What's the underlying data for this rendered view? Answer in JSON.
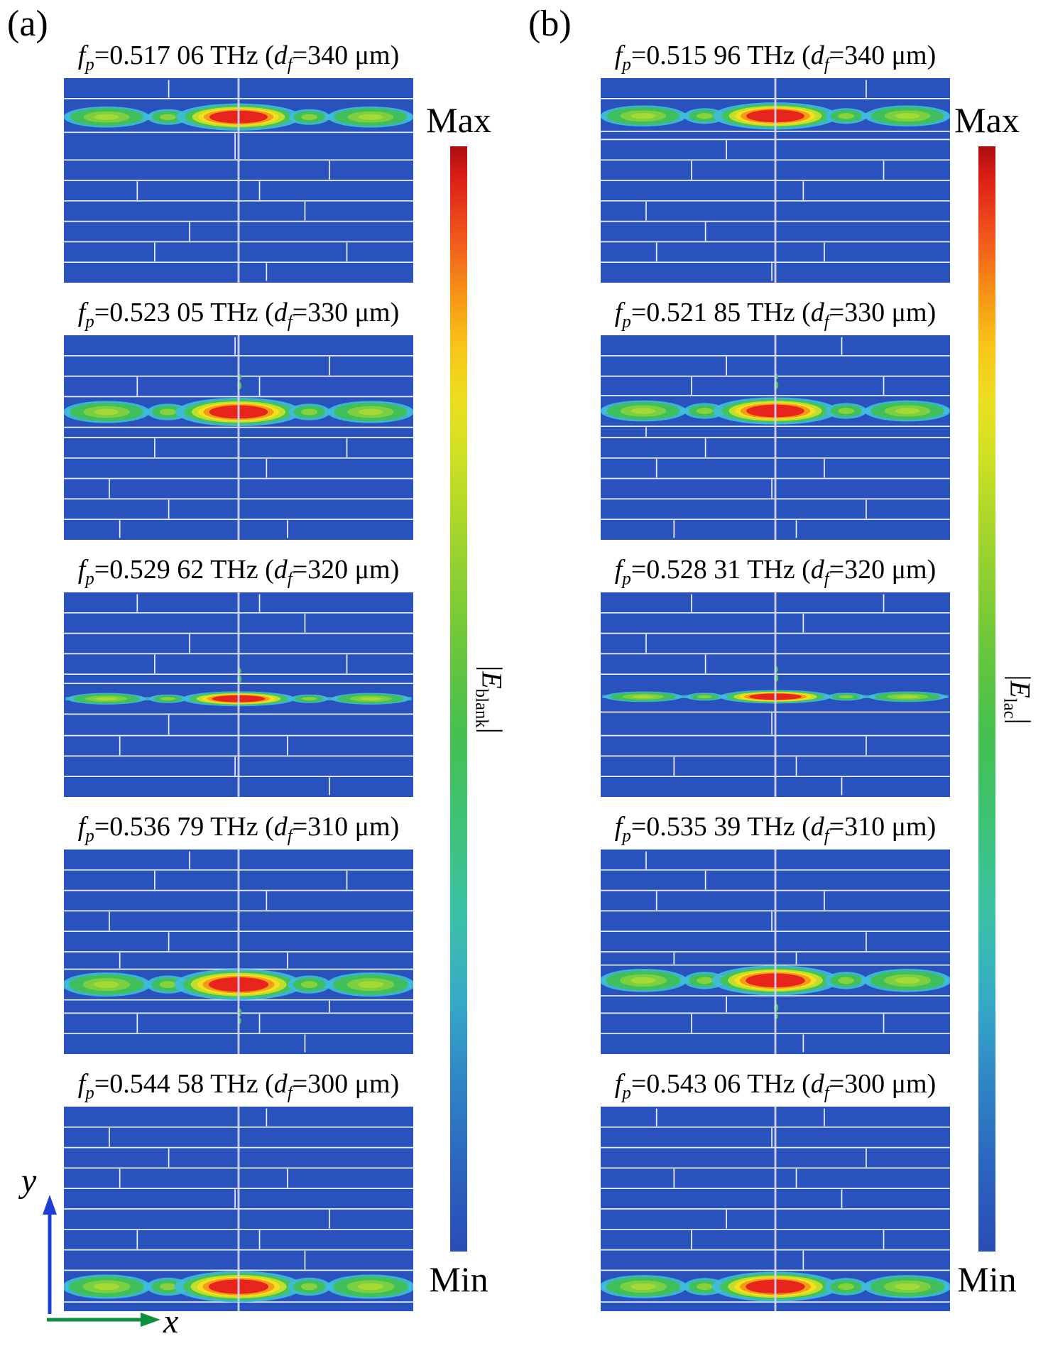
{
  "figure": {
    "colorbar": {
      "max": "Max",
      "min": "Min"
    },
    "title_parts": {
      "fp_var": "f",
      "fp_sub": "p",
      "eq": "=",
      "thz_unit": "THz",
      "open_paren": "(",
      "df_var": "d",
      "df_sub": "f",
      "um_unit": "μm",
      "close_paren": ")"
    },
    "axis": {
      "x": "x",
      "y": "y"
    },
    "colors": {
      "panel_bg": "#2a52bc",
      "layer_line": "#ffffff",
      "center_line": "#d8d2f2",
      "band_strip": "#3fb0d2",
      "hot_core": "#e8251c",
      "accent_green": "#3fc05c",
      "accent_cyan": "#3fbcdc",
      "axis_y_arrow": "#1f3fd4",
      "axis_x_arrow": "#0f8f40"
    }
  },
  "columns": [
    {
      "id": "a",
      "label": "(a)",
      "field_label": {
        "bar_open": "|",
        "symbol": "E",
        "sub": "blank",
        "bar_close": "|"
      },
      "panels": [
        {
          "fp": "0.517 06",
          "df": "340",
          "band_pos": 0.19,
          "intensity": 1.0,
          "speck": null
        },
        {
          "fp": "0.523 05",
          "df": "330",
          "band_pos": 0.375,
          "intensity": 1.05,
          "speck": "above"
        },
        {
          "fp": "0.529 62",
          "df": "320",
          "band_pos": 0.52,
          "intensity": 0.55,
          "speck": "above"
        },
        {
          "fp": "0.536 79",
          "df": "310",
          "band_pos": 0.66,
          "intensity": 1.15,
          "speck": "below"
        },
        {
          "fp": "0.544 58",
          "df": "300",
          "band_pos": 0.88,
          "intensity": 1.15,
          "speck": null
        }
      ]
    },
    {
      "id": "b",
      "label": "(b)",
      "field_label": {
        "bar_open": "|",
        "symbol": "E",
        "sub": "lac",
        "bar_close": "|"
      },
      "panels": [
        {
          "fp": "0.515 96",
          "df": "340",
          "band_pos": 0.185,
          "intensity": 1.0,
          "speck": null
        },
        {
          "fp": "0.521 85",
          "df": "330",
          "band_pos": 0.37,
          "intensity": 1.0,
          "speck": "above"
        },
        {
          "fp": "0.528 31",
          "df": "320",
          "band_pos": 0.51,
          "intensity": 0.5,
          "speck": "above"
        },
        {
          "fp": "0.535 39",
          "df": "310",
          "band_pos": 0.64,
          "intensity": 1.1,
          "speck": "below"
        },
        {
          "fp": "0.543 06",
          "df": "300",
          "band_pos": 0.88,
          "intensity": 1.1,
          "speck": null
        }
      ]
    }
  ]
}
